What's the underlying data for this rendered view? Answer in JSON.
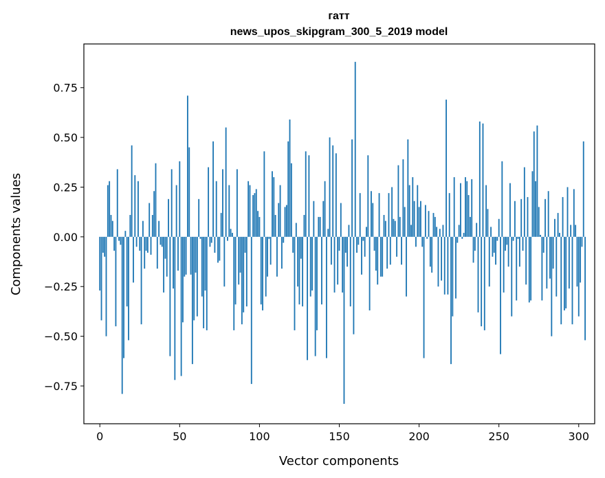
{
  "chart_data": {
    "type": "bar",
    "title": "гатт",
    "subtitle": "news_upos_skipgram_300_5_2019 model",
    "xlabel": "Vector components",
    "ylabel": "Components values",
    "xlim": [
      -10,
      310
    ],
    "ylim": [
      -0.94,
      0.97
    ],
    "xticks": [
      0,
      50,
      100,
      150,
      200,
      250,
      300
    ],
    "xtick_labels": [
      "0",
      "50",
      "100",
      "150",
      "200",
      "250",
      "300"
    ],
    "yticks": [
      -0.75,
      -0.5,
      -0.25,
      0.0,
      0.25,
      0.5,
      0.75
    ],
    "ytick_labels": [
      "−0.75",
      "−0.50",
      "−0.25",
      "0.00",
      "0.25",
      "0.50",
      "0.75"
    ],
    "grid": false,
    "bar_color": "#1f77b4",
    "values": [
      -0.27,
      -0.42,
      -0.08,
      -0.1,
      -0.5,
      0.26,
      0.28,
      0.11,
      0.08,
      -0.07,
      -0.45,
      0.34,
      -0.02,
      -0.04,
      -0.79,
      -0.61,
      0.03,
      -0.35,
      -0.52,
      0.11,
      0.46,
      -0.23,
      0.31,
      -0.05,
      0.28,
      -0.07,
      -0.44,
      0.08,
      -0.16,
      -0.07,
      -0.08,
      0.17,
      -0.09,
      0.11,
      0.23,
      0.37,
      -0.16,
      0.08,
      -0.04,
      -0.05,
      -0.28,
      -0.11,
      -0.2,
      0.19,
      -0.6,
      0.34,
      -0.26,
      -0.72,
      0.26,
      -0.17,
      0.38,
      -0.7,
      -0.43,
      -0.2,
      -0.19,
      0.71,
      0.45,
      -0.19,
      -0.64,
      -0.42,
      -0.18,
      -0.4,
      0.19,
      -0.01,
      -0.3,
      -0.46,
      -0.27,
      -0.47,
      0.35,
      -0.05,
      -0.03,
      0.48,
      -0.08,
      0.28,
      -0.13,
      -0.12,
      0.12,
      0.34,
      -0.25,
      0.55,
      -0.02,
      0.26,
      0.04,
      0.02,
      -0.47,
      -0.34,
      0.34,
      -0.24,
      -0.18,
      -0.44,
      -0.38,
      -0.08,
      -0.35,
      0.28,
      0.26,
      -0.74,
      0.21,
      0.22,
      0.24,
      0.13,
      0.1,
      -0.34,
      -0.37,
      0.43,
      -0.3,
      -0.2,
      -0.01,
      -0.14,
      0.33,
      0.3,
      0.11,
      -0.2,
      0.17,
      0.26,
      -0.16,
      -0.03,
      0.15,
      0.16,
      0.48,
      0.59,
      0.37,
      -0.08,
      -0.47,
      0.07,
      -0.25,
      -0.34,
      -0.11,
      -0.35,
      0.11,
      0.43,
      -0.62,
      0.41,
      -0.3,
      -0.27,
      0.18,
      -0.6,
      -0.47,
      0.1,
      0.1,
      -0.34,
      0.18,
      0.28,
      -0.61,
      0.04,
      0.5,
      -0.14,
      0.46,
      -0.28,
      0.42,
      -0.24,
      -0.07,
      0.17,
      -0.28,
      -0.84,
      -0.08,
      -0.15,
      0.06,
      -0.35,
      0.49,
      -0.49,
      0.88,
      -0.08,
      -0.04,
      0.22,
      -0.19,
      -0.02,
      -0.1,
      0.05,
      0.41,
      -0.37,
      0.23,
      0.17,
      -0.07,
      -0.17,
      -0.24,
      0.22,
      -0.2,
      -0.2,
      0.11,
      0.08,
      -0.16,
      0.22,
      -0.14,
      0.25,
      0.09,
      0.08,
      -0.1,
      0.36,
      0.1,
      -0.14,
      0.39,
      0.15,
      -0.3,
      0.49,
      0.26,
      0.06,
      0.3,
      0.18,
      -0.05,
      0.26,
      0.15,
      0.18,
      -0.05,
      -0.61,
      0.16,
      -0.01,
      0.13,
      -0.15,
      -0.18,
      0.12,
      0.1,
      0.05,
      -0.25,
      0.04,
      -0.22,
      0.06,
      -0.29,
      0.69,
      -0.29,
      0.22,
      -0.64,
      -0.4,
      0.3,
      -0.31,
      -0.03,
      0.06,
      0.27,
      -0.01,
      0.02,
      0.3,
      0.28,
      0.21,
      0.1,
      0.29,
      -0.13,
      -0.07,
      0.07,
      -0.38,
      0.58,
      -0.45,
      0.57,
      -0.47,
      0.26,
      0.14,
      -0.25,
      0.05,
      -0.1,
      -0.08,
      -0.14,
      -0.02,
      0.09,
      -0.59,
      0.38,
      -0.28,
      -0.07,
      -0.04,
      -0.15,
      0.27,
      -0.4,
      -0.02,
      0.18,
      -0.32,
      -0.01,
      -0.15,
      0.19,
      -0.07,
      0.35,
      -0.24,
      0.2,
      -0.33,
      -0.32,
      0.33,
      0.53,
      0.28,
      0.56,
      0.15,
      0.01,
      -0.32,
      -0.08,
      0.19,
      -0.26,
      0.23,
      -0.21,
      -0.5,
      -0.16,
      0.09,
      -0.3,
      0.12,
      0.02,
      -0.44,
      0.2,
      -0.37,
      -0.36,
      0.25,
      -0.26,
      0.06,
      -0.44,
      0.24,
      0.06,
      -0.25,
      -0.4,
      -0.23,
      -0.05,
      0.48,
      -0.52
    ]
  }
}
